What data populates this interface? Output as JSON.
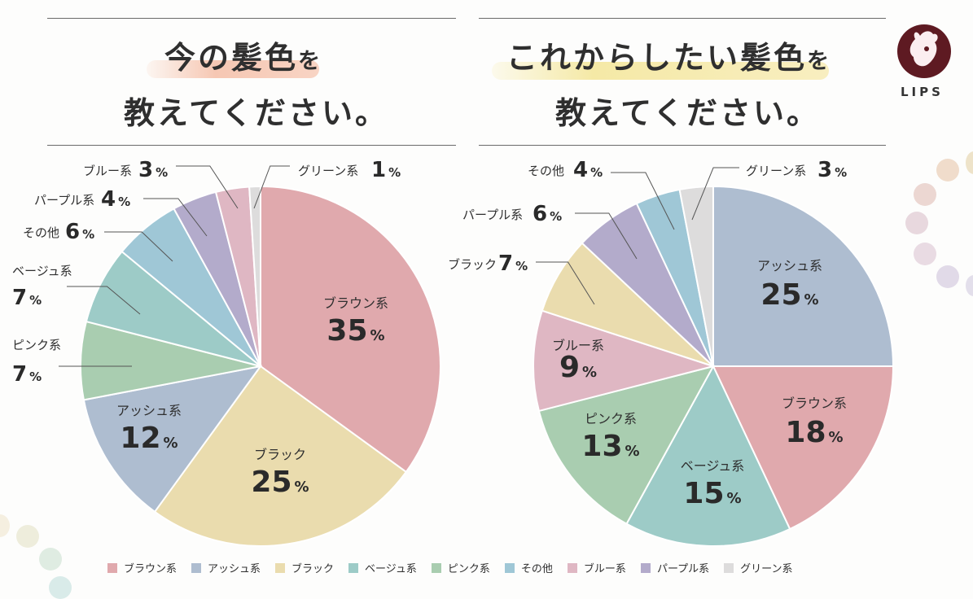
{
  "chart_data": [
    {
      "type": "pie",
      "title": "今の髪色を教えてください。",
      "title_parts": {
        "main": "今の髪色",
        "particle": "を",
        "line2": "教えてください。"
      },
      "categories": [
        "ブラウン系",
        "ブラック",
        "アッシュ系",
        "ピンク系",
        "ベージュ系",
        "その他",
        "パープル系",
        "ブルー系",
        "グリーン系"
      ],
      "values": [
        35,
        25,
        12,
        7,
        7,
        6,
        4,
        3,
        1
      ],
      "unit": "%"
    },
    {
      "type": "pie",
      "title": "これからしたい髪色を教えてください。",
      "title_parts": {
        "main": "これからしたい髪色",
        "particle": "を",
        "line2": "教えてください。"
      },
      "categories": [
        "アッシュ系",
        "ブラウン系",
        "ベージュ系",
        "ピンク系",
        "ブルー系",
        "ブラック",
        "パープル系",
        "その他",
        "グリーン系"
      ],
      "values": [
        25,
        18,
        15,
        13,
        9,
        7,
        6,
        4,
        3
      ],
      "unit": "%"
    }
  ],
  "colors": {
    "ブラウン系": "#e0a9ad",
    "アッシュ系": "#aebdd0",
    "ブラック": "#eadcae",
    "ベージュ系": "#9dcbc7",
    "ピンク系": "#a9cdb0",
    "その他": "#9fc7d6",
    "ブルー系": "#dfb7c3",
    "パープル系": "#b3abcb",
    "グリーン系": "#dddcdc"
  },
  "legend": [
    "ブラウン系",
    "アッシュ系",
    "ブラック",
    "ベージュ系",
    "ピンク系",
    "その他",
    "ブルー系",
    "パープル系",
    "グリーン系"
  ],
  "brand": {
    "name": "LIPS"
  }
}
